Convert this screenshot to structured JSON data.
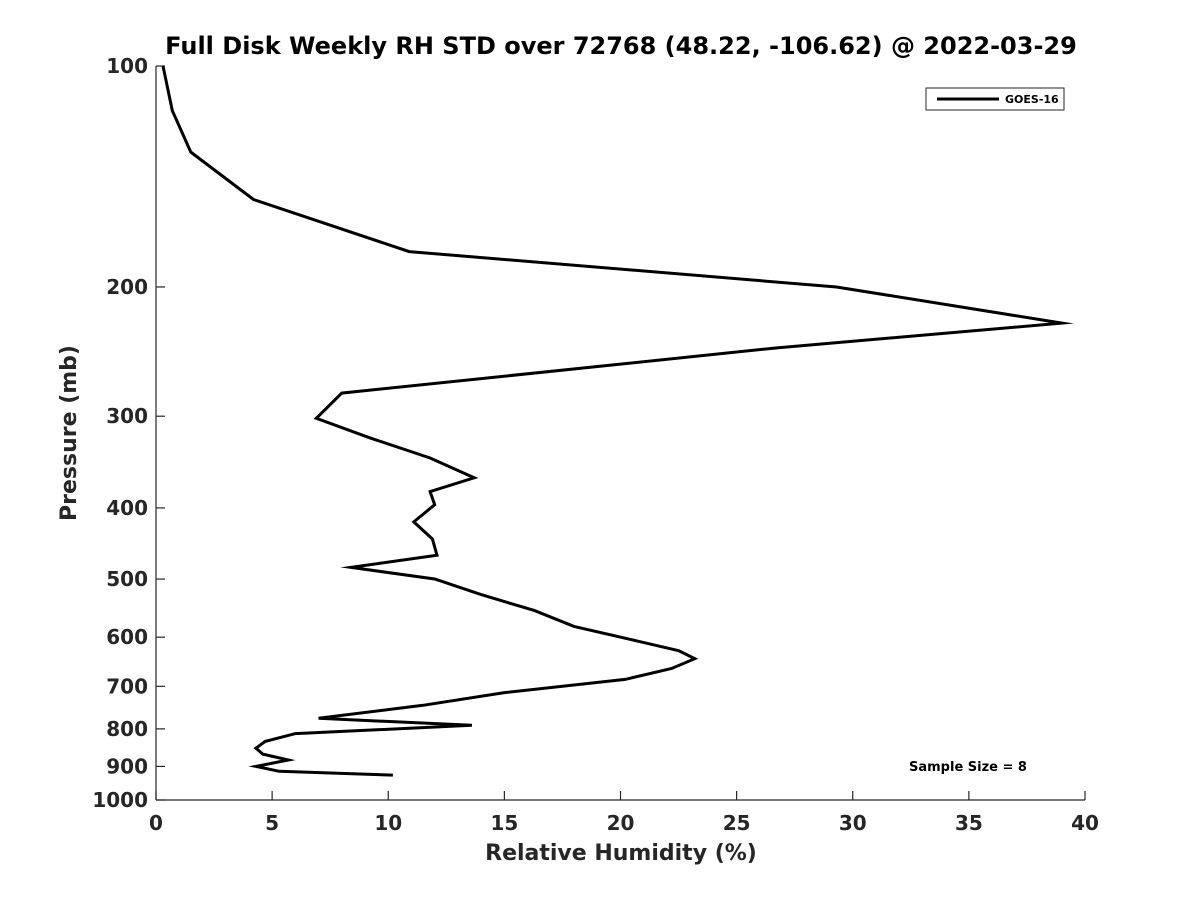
{
  "chart_data": {
    "type": "line",
    "title": "Full Disk Weekly RH STD over 72768 (48.22, -106.62) @ 2022-03-29",
    "xlabel": "Relative Humidity (%)",
    "ylabel": "Pressure (mb)",
    "xlim": [
      0,
      40
    ],
    "ylim": [
      100,
      1000
    ],
    "y_scale": "log",
    "y_reversed": true,
    "x_ticks": [
      0,
      5,
      10,
      15,
      20,
      25,
      30,
      35,
      40
    ],
    "y_ticks": [
      100,
      200,
      300,
      400,
      500,
      600,
      700,
      800,
      900,
      1000
    ],
    "grid": false,
    "legend_position": "top-right",
    "annotation": "Sample Size = 8",
    "series": [
      {
        "name": "GOES-16",
        "color": "#000000",
        "points": [
          [
            0.3,
            100
          ],
          [
            0.7,
            115
          ],
          [
            1.5,
            131
          ],
          [
            4.2,
            152
          ],
          [
            10.9,
            179
          ],
          [
            29.3,
            200
          ],
          [
            39.0,
            224
          ],
          [
            26.8,
            242
          ],
          [
            8.0,
            279
          ],
          [
            6.9,
            302
          ],
          [
            9.2,
            321
          ],
          [
            11.8,
            342
          ],
          [
            13.7,
            364
          ],
          [
            11.8,
            380
          ],
          [
            12.0,
            396
          ],
          [
            11.1,
            418
          ],
          [
            11.9,
            441
          ],
          [
            12.1,
            464
          ],
          [
            8.4,
            482
          ],
          [
            12.0,
            500
          ],
          [
            14.0,
            525
          ],
          [
            16.3,
            552
          ],
          [
            18.0,
            580
          ],
          [
            20.5,
            605
          ],
          [
            22.5,
            626
          ],
          [
            23.2,
            642
          ],
          [
            22.2,
            662
          ],
          [
            20.2,
            685
          ],
          [
            15.0,
            714
          ],
          [
            11.5,
            743
          ],
          [
            7.0,
            774
          ],
          [
            13.6,
            791
          ],
          [
            6.0,
            812
          ],
          [
            4.7,
            832
          ],
          [
            4.3,
            850
          ],
          [
            4.6,
            866
          ],
          [
            5.7,
            882
          ],
          [
            4.3,
            900
          ],
          [
            5.3,
            914
          ],
          [
            10.2,
            925
          ]
        ]
      }
    ]
  }
}
